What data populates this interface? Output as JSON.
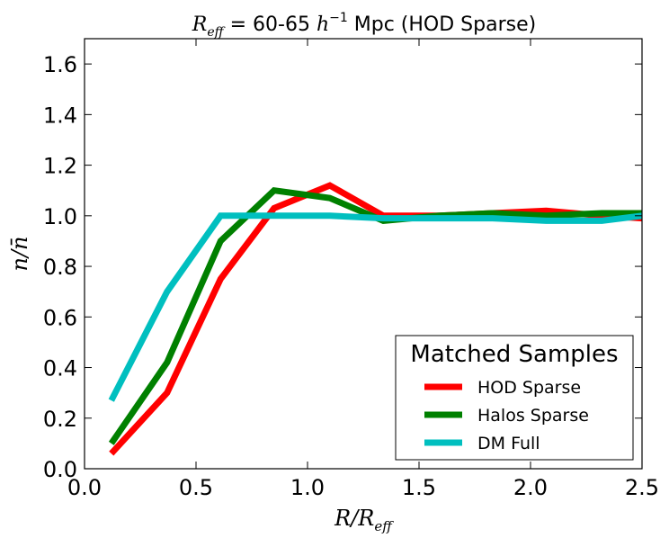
{
  "chart_data": {
    "type": "line",
    "title_math": "R",
    "title_math_sub": "eff",
    "title_text": " = 60-65 ",
    "title_math2": "h",
    "title_math2_sup": "−1",
    "title_suffix": " Mpc (HOD Sparse)",
    "xlabel_main": "R/R",
    "xlabel_sub": "eff",
    "ylabel": "n/n̄",
    "xlim": [
      0.0,
      2.5
    ],
    "ylim": [
      0.0,
      1.7
    ],
    "xticks": [
      "0.0",
      "0.5",
      "1.0",
      "1.5",
      "2.0",
      "2.5"
    ],
    "xtick_values": [
      0.0,
      0.5,
      1.0,
      1.5,
      2.0,
      2.5
    ],
    "yticks": [
      "0.0",
      "0.2",
      "0.4",
      "0.6",
      "0.8",
      "1.0",
      "1.2",
      "1.4",
      "1.6"
    ],
    "ytick_values": [
      0.0,
      0.2,
      0.4,
      0.6,
      0.8,
      1.0,
      1.2,
      1.4,
      1.6
    ],
    "legend_title": "Matched Samples",
    "legend_position": "lower-right",
    "series": [
      {
        "name": "HOD Sparse",
        "color": "#ff0000",
        "x": [
          0.12,
          0.37,
          0.61,
          0.85,
          1.1,
          1.34,
          1.59,
          1.83,
          2.07,
          2.32,
          2.5
        ],
        "y": [
          0.06,
          0.3,
          0.75,
          1.03,
          1.12,
          1.0,
          1.0,
          1.01,
          1.02,
          1.0,
          0.99
        ]
      },
      {
        "name": "Halos Sparse",
        "color": "#008000",
        "x": [
          0.12,
          0.37,
          0.61,
          0.85,
          1.1,
          1.34,
          1.59,
          1.83,
          2.07,
          2.32,
          2.5
        ],
        "y": [
          0.1,
          0.42,
          0.9,
          1.1,
          1.07,
          0.98,
          1.0,
          1.01,
          1.0,
          1.01,
          1.01
        ]
      },
      {
        "name": "DM Full",
        "color": "#00bfbf",
        "x": [
          0.12,
          0.37,
          0.61,
          0.85,
          1.1,
          1.34,
          1.59,
          1.83,
          2.07,
          2.32,
          2.5
        ],
        "y": [
          0.27,
          0.7,
          1.0,
          1.0,
          1.0,
          0.99,
          0.99,
          0.99,
          0.98,
          0.98,
          1.0
        ]
      }
    ]
  }
}
